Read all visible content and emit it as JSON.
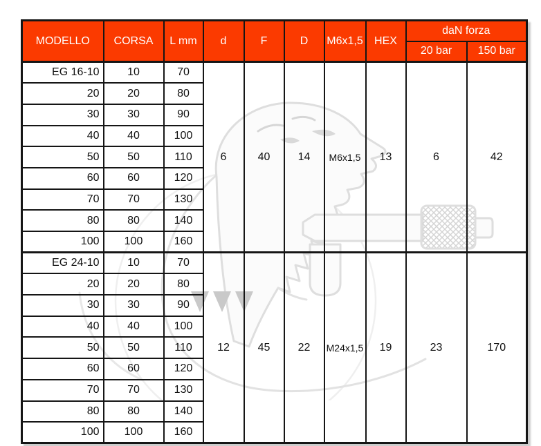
{
  "colors": {
    "header_bg": "#fb3a00",
    "header_text": "#ffffff",
    "grid": "#151515",
    "body_text": "#111111",
    "watermark": "#dedede"
  },
  "icons": {
    "watermark": "rooster-pneumatic-tool-logo-watermark"
  },
  "table": {
    "columns": [
      "MODELLO",
      "CORSA",
      "L mm",
      "d",
      "F",
      "D",
      "M6x1,5",
      "HEX"
    ],
    "force_header": "daN forza",
    "force_subcolumns": [
      "20 bar",
      "150 bar"
    ],
    "merged_column_keys": [
      "d",
      "F",
      "D",
      "thread",
      "HEX",
      "20 bar",
      "150 bar"
    ],
    "groups": [
      {
        "rows": [
          [
            "EG 16-10",
            "10",
            "70"
          ],
          [
            "20",
            "20",
            "80"
          ],
          [
            "30",
            "30",
            "90"
          ],
          [
            "40",
            "40",
            "100"
          ],
          [
            "50",
            "50",
            "110"
          ],
          [
            "60",
            "60",
            "120"
          ],
          [
            "70",
            "70",
            "130"
          ],
          [
            "80",
            "80",
            "140"
          ],
          [
            "100",
            "100",
            "160"
          ]
        ],
        "merged": [
          "6",
          "40",
          "14",
          "M6x1,5",
          "13",
          "6",
          "42"
        ]
      },
      {
        "rows": [
          [
            "EG 24-10",
            "10",
            "70"
          ],
          [
            "20",
            "20",
            "80"
          ],
          [
            "30",
            "30",
            "90"
          ],
          [
            "40",
            "40",
            "100"
          ],
          [
            "50",
            "50",
            "110"
          ],
          [
            "60",
            "60",
            "120"
          ],
          [
            "70",
            "70",
            "130"
          ],
          [
            "80",
            "80",
            "140"
          ],
          [
            "100",
            "100",
            "160"
          ]
        ],
        "merged": [
          "12",
          "45",
          "22",
          "M24x1,5",
          "19",
          "23",
          "170"
        ]
      }
    ]
  }
}
